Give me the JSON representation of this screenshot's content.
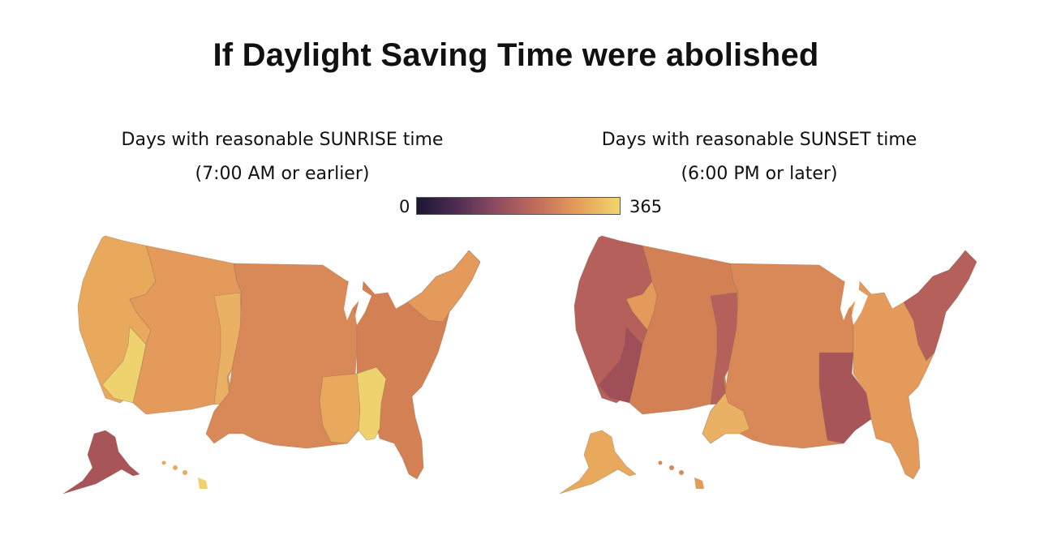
{
  "title": "If Daylight Saving Time were abolished",
  "left_panel": {
    "subtitle_line1": "Days with reasonable SUNRISE time",
    "subtitle_line2": "(7:00 AM or earlier)"
  },
  "right_panel": {
    "subtitle_line1": "Days with reasonable SUNSET time",
    "subtitle_line2": "(6:00 PM or later)"
  },
  "legend": {
    "min_label": "0",
    "max_label": "365",
    "colors": [
      "#1b1732",
      "#4a2a52",
      "#8a4a60",
      "#c06a5c",
      "#e39a5a",
      "#f2d66c"
    ]
  },
  "palette": {
    "high": "#f0dc72",
    "mid_high": "#eab064",
    "mid": "#e39a5a",
    "mid_low": "#d98958",
    "low": "#c9735a",
    "lower": "#b5605a"
  },
  "regions": [
    "Pacific",
    "Nevada/California border",
    "Mountain",
    "Central",
    "Eastern",
    "Alaska",
    "Hawaii"
  ]
}
